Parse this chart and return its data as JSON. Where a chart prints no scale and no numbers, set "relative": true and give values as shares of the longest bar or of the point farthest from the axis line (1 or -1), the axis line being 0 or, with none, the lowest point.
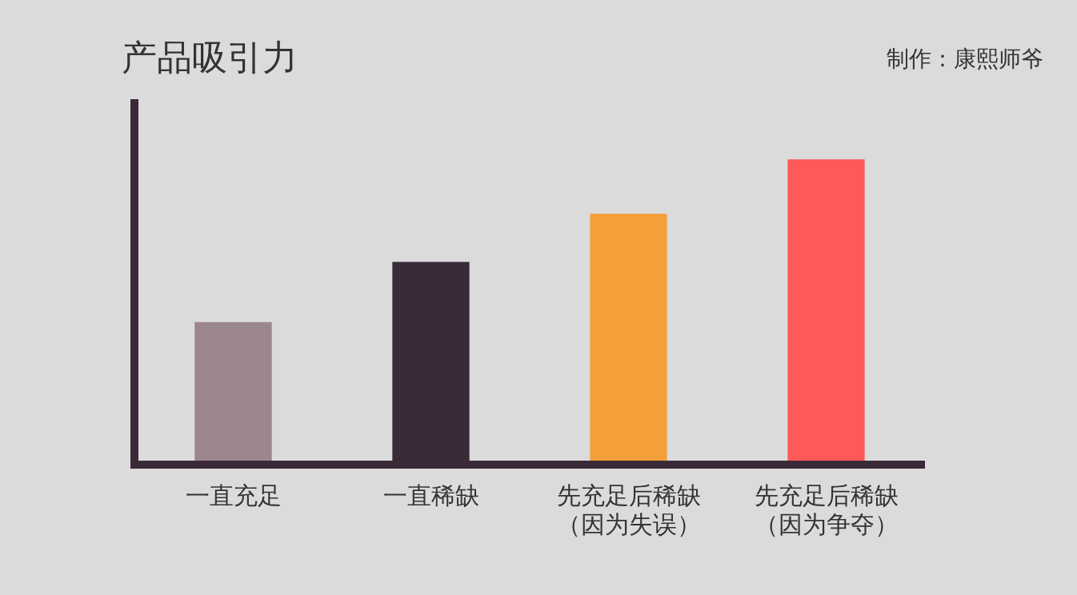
{
  "chart_data": {
    "type": "bar",
    "title": "产品吸引力",
    "annotations": [
      "制作：康熙师爷"
    ],
    "relative": true,
    "categories": [
      "一直充足",
      "一直稀缺",
      "先充足后稀缺（因为失误）",
      "先充足后稀缺（因为争夺）"
    ],
    "values": [
      0.46,
      0.66,
      0.82,
      1
    ],
    "colors": [
      "#9b8690",
      "#3a2a38",
      "#f4a03a",
      "#ff5a5a"
    ],
    "grid": false,
    "legend": false
  }
}
